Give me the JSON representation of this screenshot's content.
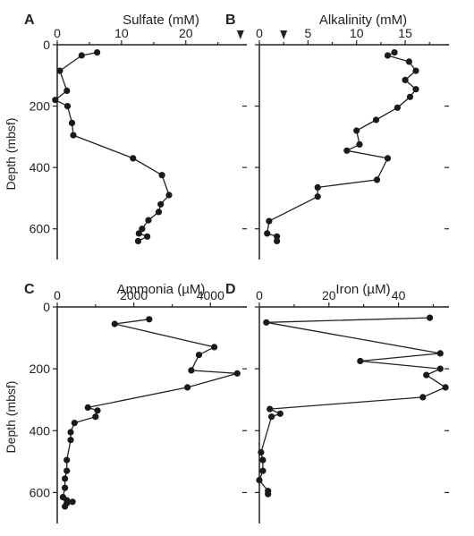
{
  "colors": {
    "ink": "#222222",
    "marker": "#1a1a1a",
    "background": "#ffffff"
  },
  "shared_ylabel": "Depth (mbsf)",
  "chart_data": [
    {
      "type": "line",
      "panel_letter": "A",
      "title": "Sulfate (mM)",
      "xlim": [
        0,
        29.5
      ],
      "xticks": [
        "0",
        "10",
        "20"
      ],
      "xtick_values": [
        0,
        10,
        20
      ],
      "ylim": [
        700,
        0
      ],
      "yticks": [
        "0",
        "200",
        "400",
        "600"
      ],
      "ytick_values": [
        0,
        200,
        400,
        600
      ],
      "arrow_markers_x": [
        28.5
      ],
      "x": [
        6.2,
        3.8,
        0.4,
        1.5,
        -0.3,
        1.6,
        2.3,
        2.5,
        11.8,
        16.3,
        17.4,
        16.1,
        15.8,
        14.2,
        13.2,
        12.7,
        14.0,
        12.6
      ],
      "y": [
        25,
        35,
        85,
        150,
        180,
        200,
        255,
        295,
        370,
        425,
        490,
        520,
        545,
        572,
        600,
        615,
        625,
        640
      ]
    },
    {
      "type": "line",
      "panel_letter": "B",
      "title": "Alkalinity (mM)",
      "xlim": [
        0,
        19.5
      ],
      "xticks": [
        "0",
        "5",
        "10",
        "15"
      ],
      "xtick_values": [
        0,
        5,
        10,
        15
      ],
      "ylim": [
        700,
        0
      ],
      "yticks": [],
      "ytick_values": [
        0,
        200,
        400,
        600
      ],
      "arrow_markers_x": [
        2.5
      ],
      "x": [
        13.9,
        13.2,
        15.4,
        16.1,
        15.0,
        16.1,
        15.5,
        14.2,
        12.0,
        10.0,
        10.3,
        9.0,
        13.2,
        12.1,
        6.0,
        6.0,
        1.0,
        0.8,
        1.8,
        1.8
      ],
      "y": [
        25,
        35,
        55,
        85,
        115,
        145,
        170,
        205,
        245,
        280,
        325,
        345,
        370,
        440,
        465,
        495,
        575,
        615,
        625,
        640
      ]
    },
    {
      "type": "line",
      "panel_letter": "C",
      "title": "Ammonia (µM)",
      "xlim": [
        0,
        4950
      ],
      "xticks": [
        "0",
        "2000",
        "4000"
      ],
      "xtick_values": [
        0,
        2000,
        4000
      ],
      "ylim": [
        700,
        0
      ],
      "yticks": [
        "0",
        "200",
        "400",
        "600"
      ],
      "ytick_values": [
        0,
        200,
        400,
        600
      ],
      "x": [
        2400,
        1500,
        4100,
        3700,
        3500,
        4700,
        3400,
        800,
        1050,
        1000,
        450,
        350,
        350,
        250,
        250,
        200,
        200,
        150,
        250,
        400,
        250,
        200
      ],
      "y": [
        40,
        55,
        130,
        155,
        205,
        215,
        260,
        325,
        335,
        355,
        375,
        405,
        430,
        495,
        530,
        555,
        585,
        615,
        625,
        630,
        635,
        645
      ]
    },
    {
      "type": "line",
      "panel_letter": "D",
      "title": "Iron (µM)",
      "xlim": [
        0,
        54.5
      ],
      "xticks": [
        "0",
        "20",
        "40"
      ],
      "xtick_values": [
        0,
        20,
        40
      ],
      "ylim": [
        700,
        0
      ],
      "yticks": [],
      "ytick_values": [
        0,
        200,
        400,
        600
      ],
      "x": [
        49,
        2,
        52,
        29,
        52,
        48,
        53.5,
        47,
        3,
        6,
        3.5,
        0.5,
        1,
        1,
        0,
        2.5,
        2.5
      ],
      "y": [
        35,
        50,
        150,
        175,
        200,
        220,
        260,
        292,
        330,
        345,
        355,
        470,
        495,
        530,
        560,
        595,
        605
      ]
    }
  ]
}
